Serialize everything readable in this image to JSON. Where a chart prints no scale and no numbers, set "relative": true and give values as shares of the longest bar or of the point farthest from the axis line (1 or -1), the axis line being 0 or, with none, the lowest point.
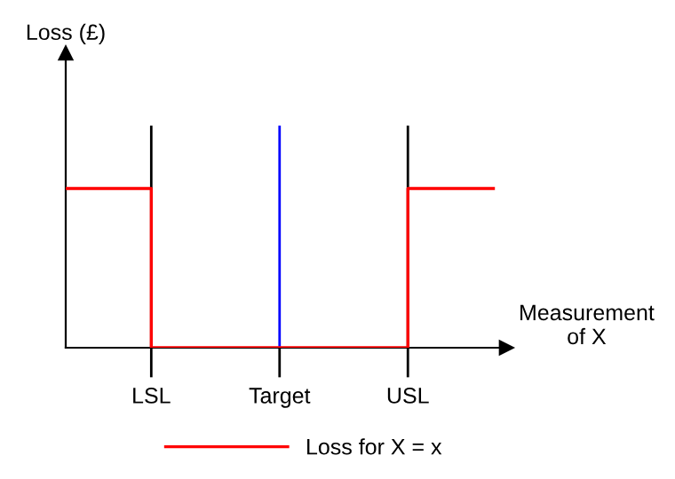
{
  "chart_data": {
    "type": "step",
    "relative": true,
    "annotations": [
      "Loss (£)"
    ],
    "xlabel": "Measurement\nof X",
    "categories": [
      null,
      null,
      "LSL",
      null,
      null,
      "Target",
      null,
      null,
      "USL",
      null,
      null
    ],
    "series": [
      {
        "name": "Loss for X = x",
        "color": "#ff0000",
        "values": [
          1,
          1,
          0,
          0,
          0,
          0,
          0,
          0,
          1,
          1,
          1
        ]
      }
    ],
    "ref_lines": [
      {
        "axis": "x",
        "value": "LSL",
        "color": "#000000"
      },
      {
        "axis": "x",
        "value": "Target",
        "color": "#0000ff"
      },
      {
        "axis": "x",
        "value": "USL",
        "color": "#000000"
      }
    ],
    "grid": false,
    "legend": "bottom"
  }
}
